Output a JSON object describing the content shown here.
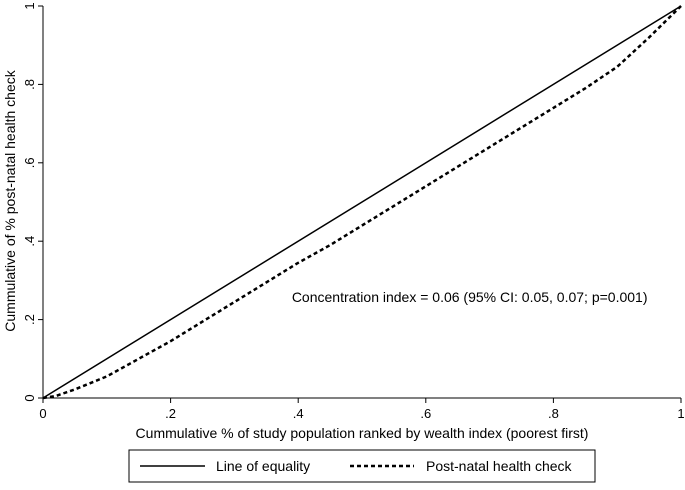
{
  "chart_data": {
    "type": "line",
    "title": "",
    "xlabel": "Cummulative % of study population ranked by wealth index (poorest first)",
    "ylabel": "Cummulative of % post-natal health check",
    "xlim": [
      0,
      1
    ],
    "ylim": [
      0,
      1
    ],
    "x_ticks": [
      {
        "value": 0,
        "label": "0"
      },
      {
        "value": 0.2,
        "label": ".2"
      },
      {
        "value": 0.4,
        "label": ".4"
      },
      {
        "value": 0.6,
        "label": ".6"
      },
      {
        "value": 0.8,
        "label": ".8"
      },
      {
        "value": 1,
        "label": "1"
      }
    ],
    "y_ticks": [
      {
        "value": 0,
        "label": "0"
      },
      {
        "value": 0.2,
        "label": ".2"
      },
      {
        "value": 0.4,
        "label": ".4"
      },
      {
        "value": 0.6,
        "label": ".6"
      },
      {
        "value": 0.8,
        "label": ".8"
      },
      {
        "value": 1,
        "label": "1"
      }
    ],
    "grid": false,
    "series": [
      {
        "name": "Line of equality",
        "style": "solid",
        "x": [
          0,
          1
        ],
        "y": [
          0,
          1
        ]
      },
      {
        "name": "Post-natal health check",
        "style": "dashed",
        "x": [
          0,
          0.02,
          0.05,
          0.1,
          0.15,
          0.2,
          0.25,
          0.3,
          0.35,
          0.4,
          0.45,
          0.5,
          0.55,
          0.6,
          0.65,
          0.7,
          0.75,
          0.8,
          0.85,
          0.9,
          0.95,
          1
        ],
        "y": [
          0,
          0.005,
          0.022,
          0.055,
          0.1,
          0.145,
          0.195,
          0.245,
          0.295,
          0.345,
          0.39,
          0.44,
          0.49,
          0.54,
          0.59,
          0.64,
          0.69,
          0.74,
          0.79,
          0.845,
          0.92,
          1
        ]
      }
    ],
    "annotations": [
      {
        "text": "Concentration index = 0.06 (95% CI: 0.05, 0.07; p=0.001)",
        "x": 0.39,
        "y": 0.245
      }
    ],
    "legend": {
      "position": "bottom",
      "entries": [
        "Line of equality",
        "Post-natal health check"
      ]
    },
    "colors": {
      "line": "#000000",
      "background": "#ffffff"
    }
  }
}
